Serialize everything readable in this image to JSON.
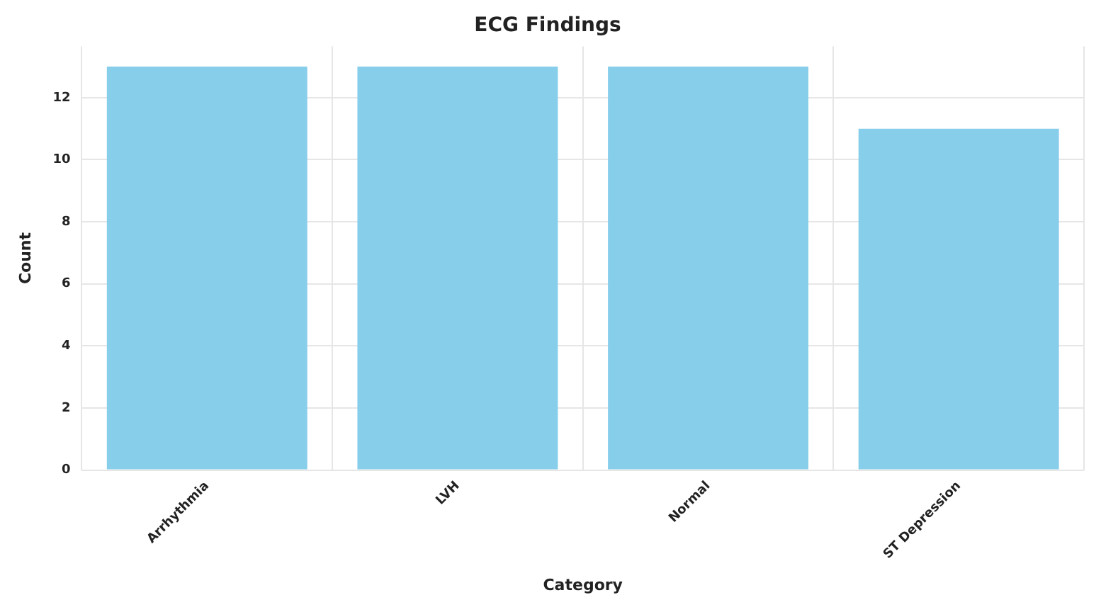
{
  "chart_data": {
    "type": "bar",
    "title": "ECG Findings",
    "xlabel": "Category",
    "ylabel": "Count",
    "categories": [
      "Arrhythmia",
      "LVH",
      "Normal",
      "ST Depression"
    ],
    "values": [
      13,
      13,
      13,
      11
    ],
    "color": "#87ceeb",
    "ylim": [
      0,
      13.65
    ],
    "yticks": [
      0,
      2,
      4,
      6,
      8,
      10,
      12
    ],
    "grid": true
  }
}
